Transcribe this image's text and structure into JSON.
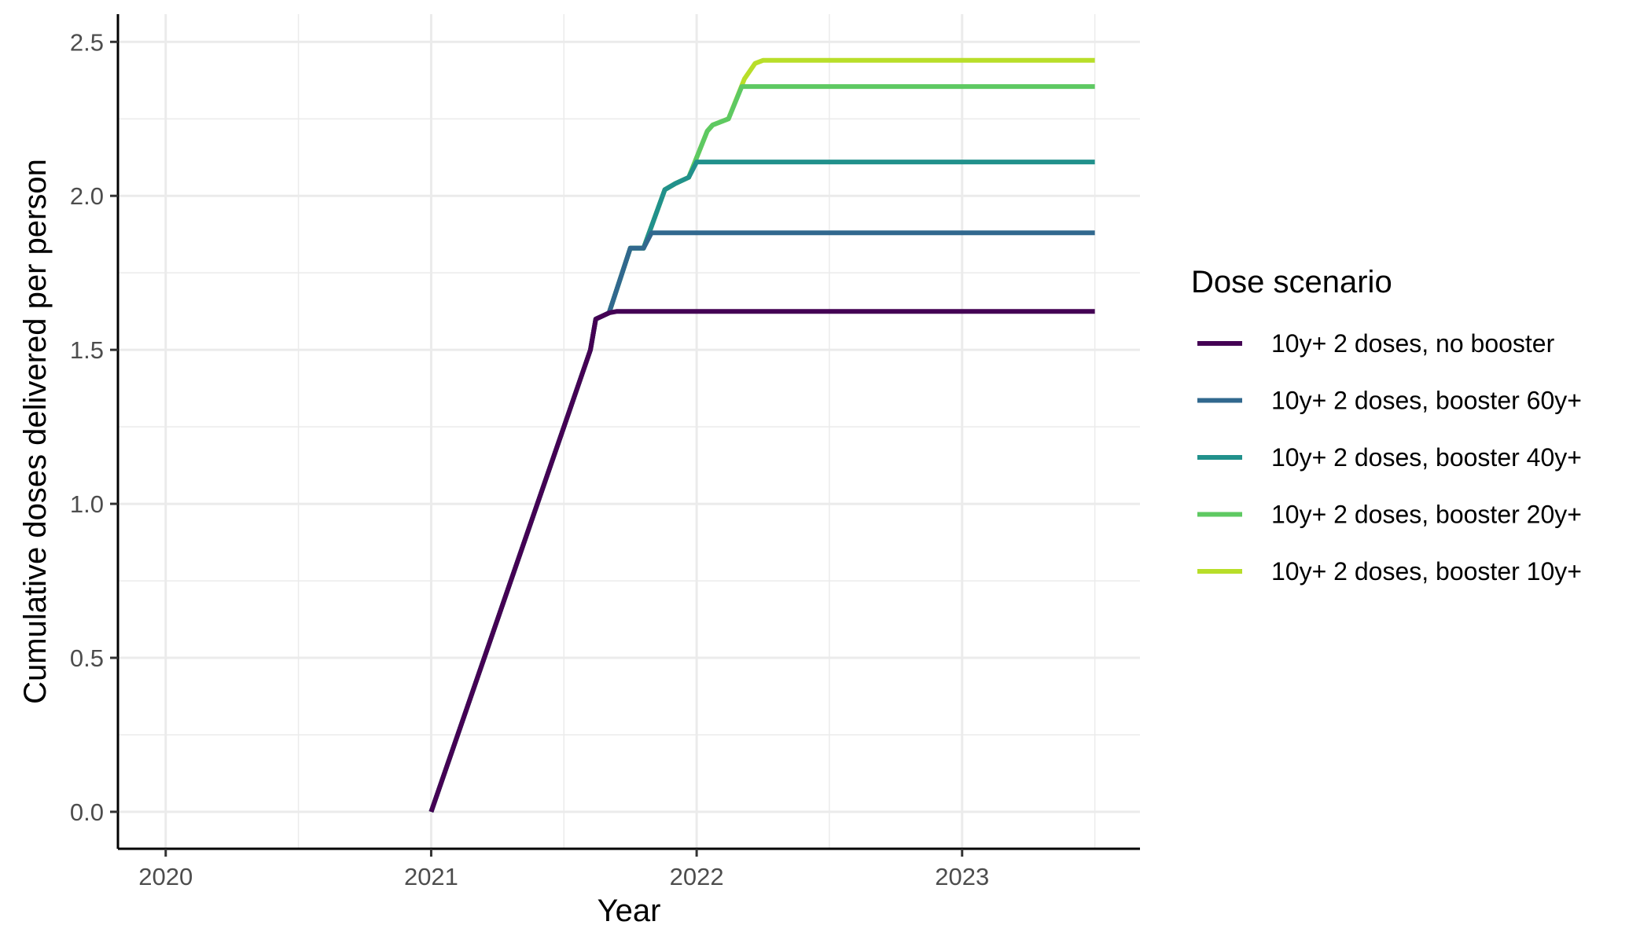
{
  "chart_data": {
    "type": "line",
    "xlabel": "Year",
    "ylabel": "Cumulative doses delivered per person",
    "xlim": [
      2019.82,
      2023.67
    ],
    "ylim": [
      -0.12,
      2.59
    ],
    "x_ticks": [
      2020,
      2021,
      2022,
      2023
    ],
    "x_tick_labels": [
      "2020",
      "2021",
      "2022",
      "2023"
    ],
    "y_ticks": [
      0.0,
      0.5,
      1.0,
      1.5,
      2.0,
      2.5
    ],
    "y_tick_labels": [
      "0.0",
      "0.5",
      "1.0",
      "1.5",
      "2.0",
      "2.5"
    ],
    "grid": true,
    "legend": {
      "title": "Dose scenario",
      "position": "right"
    },
    "series": [
      {
        "name": "10y+ 2 doses, no booster",
        "color": "#440154",
        "x": [
          2021.0,
          2021.2,
          2021.4,
          2021.5,
          2021.6,
          2021.62,
          2021.67,
          2021.7,
          2023.5
        ],
        "y": [
          0.0,
          0.5,
          1.0,
          1.25,
          1.5,
          1.6,
          1.62,
          1.625,
          1.625
        ]
      },
      {
        "name": "10y+ 2 doses, booster 60y+",
        "color": "#31688e",
        "x": [
          2021.0,
          2021.2,
          2021.4,
          2021.5,
          2021.6,
          2021.62,
          2021.67,
          2021.75,
          2021.8,
          2021.83,
          2023.5
        ],
        "y": [
          0.0,
          0.5,
          1.0,
          1.25,
          1.5,
          1.6,
          1.62,
          1.83,
          1.83,
          1.88,
          1.88
        ]
      },
      {
        "name": "10y+ 2 doses, booster 40y+",
        "color": "#21918c",
        "x": [
          2021.0,
          2021.2,
          2021.4,
          2021.5,
          2021.6,
          2021.62,
          2021.67,
          2021.75,
          2021.8,
          2021.88,
          2021.92,
          2021.97,
          2022.0,
          2023.5
        ],
        "y": [
          0.0,
          0.5,
          1.0,
          1.25,
          1.5,
          1.6,
          1.62,
          1.83,
          1.83,
          2.02,
          2.04,
          2.06,
          2.11,
          2.11
        ]
      },
      {
        "name": "10y+ 2 doses, booster 20y+",
        "color": "#5ec962",
        "x": [
          2021.0,
          2021.2,
          2021.4,
          2021.5,
          2021.6,
          2021.62,
          2021.67,
          2021.75,
          2021.8,
          2021.88,
          2021.92,
          2021.97,
          2022.04,
          2022.06,
          2022.12,
          2022.17,
          2023.5
        ],
        "y": [
          0.0,
          0.5,
          1.0,
          1.25,
          1.5,
          1.6,
          1.62,
          1.83,
          1.83,
          2.02,
          2.04,
          2.06,
          2.21,
          2.23,
          2.25,
          2.355,
          2.355
        ]
      },
      {
        "name": "10y+ 2 doses, booster 10y+",
        "color": "#b8de29",
        "x": [
          2021.0,
          2021.2,
          2021.4,
          2021.5,
          2021.6,
          2021.62,
          2021.67,
          2021.75,
          2021.8,
          2021.88,
          2021.92,
          2021.97,
          2022.04,
          2022.06,
          2022.12,
          2022.18,
          2022.22,
          2022.25,
          2023.5
        ],
        "y": [
          0.0,
          0.5,
          1.0,
          1.25,
          1.5,
          1.6,
          1.62,
          1.83,
          1.83,
          2.02,
          2.04,
          2.06,
          2.21,
          2.23,
          2.25,
          2.38,
          2.43,
          2.44,
          2.44
        ]
      }
    ]
  }
}
